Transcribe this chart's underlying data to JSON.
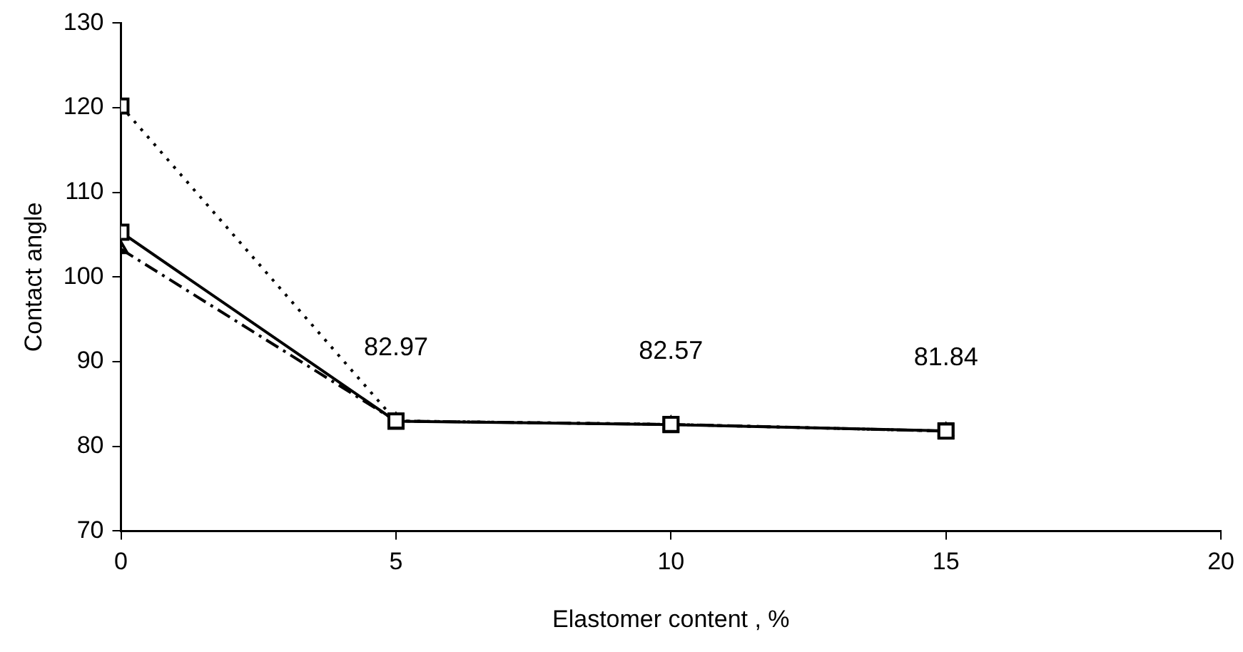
{
  "chart_data": {
    "type": "line",
    "xlabel": "Elastomer content , %",
    "ylabel": "Contact angle",
    "x": [
      0,
      5,
      10,
      15
    ],
    "xlim": [
      0,
      20
    ],
    "xticks": [
      0,
      5,
      10,
      15,
      20
    ],
    "ylim": [
      70,
      130
    ],
    "yticks": [
      70,
      80,
      90,
      100,
      110,
      120,
      130
    ],
    "grid": false,
    "legend": false,
    "series": [
      {
        "color": "#000000",
        "values": [
          120.2,
          83.0,
          82.6,
          81.8
        ],
        "marker": "square",
        "line_style": "dotted"
      },
      {
        "color": "#000000",
        "values": [
          105.3,
          82.97,
          82.57,
          81.84
        ],
        "marker": "square",
        "line_style": "solid",
        "value_labels": [
          null,
          "82.97",
          "82.57",
          "81.84"
        ]
      },
      {
        "color": "#000000",
        "values": [
          103.3,
          83.0,
          82.6,
          81.8
        ],
        "marker": "triangle",
        "line_style": "dashed"
      }
    ]
  }
}
